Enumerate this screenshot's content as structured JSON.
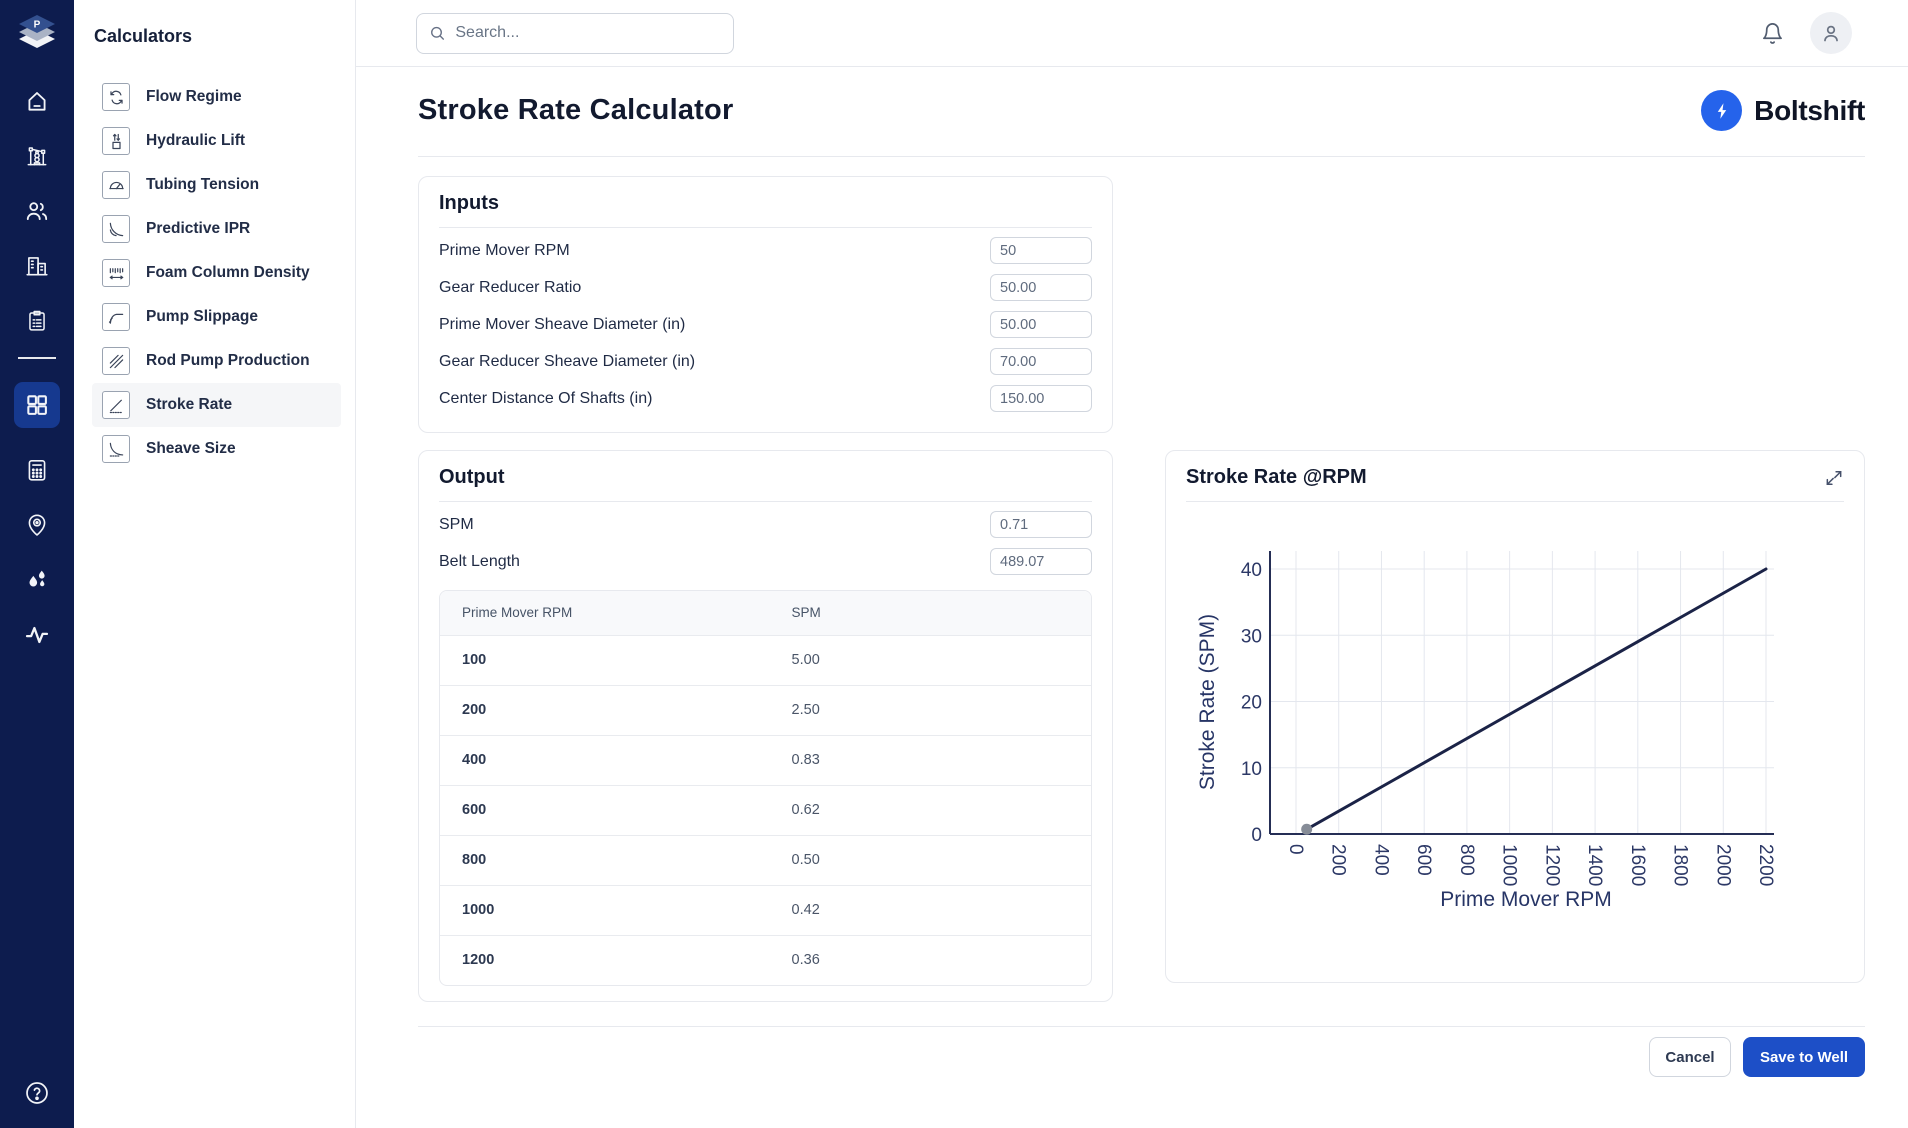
{
  "topbar": {
    "search_placeholder": "Search..."
  },
  "rail": {
    "top_icons": [
      "home",
      "pumpjack",
      "users",
      "building",
      "clipboard"
    ],
    "active_icon": "grid-apps",
    "lower_icons": [
      "calculator",
      "map-pin",
      "droplets",
      "activity"
    ],
    "help_icon": "help-circle"
  },
  "brand": {
    "app_logo_letter": "P",
    "name": "Boltshift",
    "logo_icon": "lightning-bolt",
    "logo_color": "#2563eb"
  },
  "sidebar": {
    "title": "Calculators",
    "items": [
      {
        "label": "Flow Regime",
        "icon": "flow-regime",
        "active": false
      },
      {
        "label": "Hydraulic Lift",
        "icon": "hydraulic-lift",
        "active": false
      },
      {
        "label": "Tubing Tension",
        "icon": "tubing-tension",
        "active": false
      },
      {
        "label": "Predictive IPR",
        "icon": "predictive-ipr",
        "active": false
      },
      {
        "label": "Foam Column Density",
        "icon": "foam-column-density",
        "active": false
      },
      {
        "label": "Pump Slippage",
        "icon": "pump-slippage",
        "active": false
      },
      {
        "label": "Rod Pump Production",
        "icon": "rod-pump-production",
        "active": false
      },
      {
        "label": "Stroke Rate",
        "icon": "stroke-rate",
        "active": true
      },
      {
        "label": "Sheave Size",
        "icon": "sheave-size",
        "active": false
      }
    ]
  },
  "page": {
    "title": "Stroke Rate Calculator"
  },
  "inputs": {
    "heading": "Inputs",
    "fields": [
      {
        "label": "Prime Mover RPM",
        "value": "50"
      },
      {
        "label": "Gear Reducer Ratio",
        "value": "50.00"
      },
      {
        "label": "Prime Mover Sheave Diameter (in)",
        "value": "50.00"
      },
      {
        "label": "Gear Reducer Sheave Diameter (in)",
        "value": "70.00"
      },
      {
        "label": "Center Distance Of Shafts (in)",
        "value": "150.00"
      }
    ]
  },
  "output": {
    "heading": "Output",
    "fields": [
      {
        "label": "SPM",
        "value": "0.71"
      },
      {
        "label": "Belt Length",
        "value": "489.07"
      }
    ],
    "table": {
      "headers": [
        "Prime Mover RPM",
        "SPM"
      ],
      "rows": [
        [
          "100",
          "5.00"
        ],
        [
          "200",
          "2.50"
        ],
        [
          "400",
          "0.83"
        ],
        [
          "600",
          "0.62"
        ],
        [
          "800",
          "0.50"
        ],
        [
          "1000",
          "0.42"
        ],
        [
          "1200",
          "0.36"
        ]
      ]
    }
  },
  "chart_card": {
    "title": "Stroke Rate @RPM",
    "expand_icon": "expand-arrows"
  },
  "chart_data": {
    "type": "line",
    "title": "Stroke Rate @RPM",
    "xlabel": "Prime Mover RPM",
    "ylabel": "Stroke Rate (SPM)",
    "xlim": [
      0,
      2200
    ],
    "ylim": [
      0,
      40
    ],
    "x_ticks": [
      0,
      200,
      400,
      600,
      800,
      1000,
      1200,
      1400,
      1600,
      1800,
      2000,
      2200
    ],
    "y_ticks": [
      0,
      10,
      20,
      30,
      40
    ],
    "grid": true,
    "series": [
      {
        "name": "Stroke Rate",
        "x": [
          50,
          2200
        ],
        "y": [
          0.71,
          40
        ],
        "color": "#1b2347"
      }
    ],
    "marker": {
      "x": 50,
      "y": 0.71,
      "color": "#868c97"
    }
  },
  "footer": {
    "cancel_label": "Cancel",
    "save_label": "Save to Well"
  },
  "colors": {
    "rail_bg": "#0d1c4e",
    "rail_active_tile": "#16398f",
    "accent_blue": "#1d4fc7",
    "brand_blue": "#2563eb",
    "text_dark": "#141c30",
    "text_gray": "#5f6b7e",
    "border": "#e7e9ee",
    "chart_line": "#1b2347",
    "chart_grid": "#e4e7ee"
  }
}
